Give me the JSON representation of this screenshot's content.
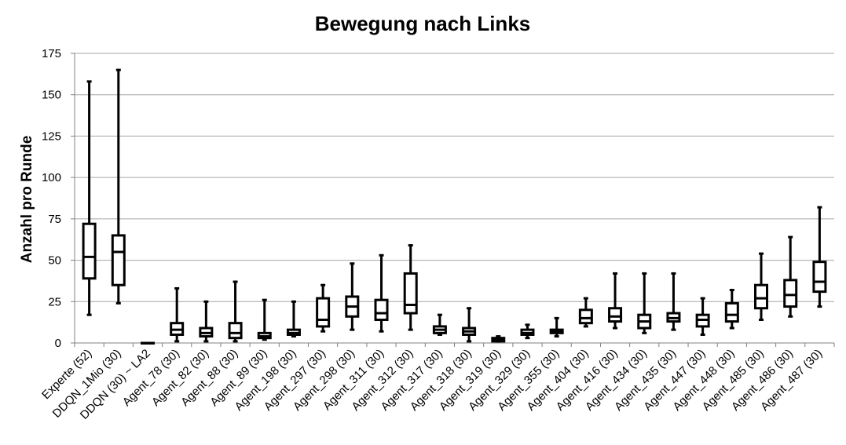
{
  "chart_data": {
    "type": "boxplot",
    "title": "Bewegung nach Links",
    "xlabel": "",
    "ylabel": "Anzahl pro Runde",
    "ylim": [
      0,
      175
    ],
    "yticks": [
      0,
      25,
      50,
      75,
      100,
      125,
      150,
      175
    ],
    "grid": true,
    "categories": [
      "Experte (52)",
      "DDQN_1Mio (30)",
      "DDQN (30) ~ LA2",
      "Agent_78 (30)",
      "Agent_82 (30)",
      "Agent_88 (30)",
      "Agent_89 (30)",
      "Agent_198 (30)",
      "Agent_297 (30)",
      "Agent_298 (30)",
      "Agent_311 (30)",
      "Agent_312 (30)",
      "Agent_317 (30)",
      "Agent_318 (30)",
      "Agent_319 (30)",
      "Agent_329 (30)",
      "Agent_355 (30)",
      "Agent_404 (30)",
      "Agent_416 (30)",
      "Agent_434 (30)",
      "Agent_435 (30)",
      "Agent_447 (30)",
      "Agent_448 (30)",
      "Agent_485 (30)",
      "Agent_486 (30)",
      "Agent_487 (30)"
    ],
    "boxes": [
      {
        "min": 17,
        "q1": 39,
        "median": 52,
        "q3": 72,
        "max": 158
      },
      {
        "min": 24,
        "q1": 35,
        "median": 55,
        "q3": 65,
        "max": 165
      },
      {
        "min": 0,
        "q1": 0,
        "median": 0,
        "q3": 0,
        "max": 0
      },
      {
        "min": 1,
        "q1": 5,
        "median": 8,
        "q3": 12,
        "max": 33
      },
      {
        "min": 1,
        "q1": 4,
        "median": 6,
        "q3": 9,
        "max": 25
      },
      {
        "min": 1,
        "q1": 3,
        "median": 6,
        "q3": 12,
        "max": 37
      },
      {
        "min": 2,
        "q1": 3,
        "median": 4,
        "q3": 6,
        "max": 26
      },
      {
        "min": 4,
        "q1": 5,
        "median": 6,
        "q3": 8,
        "max": 25
      },
      {
        "min": 7,
        "q1": 10,
        "median": 14,
        "q3": 27,
        "max": 35
      },
      {
        "min": 8,
        "q1": 16,
        "median": 22,
        "q3": 28,
        "max": 48
      },
      {
        "min": 7,
        "q1": 14,
        "median": 18,
        "q3": 26,
        "max": 53
      },
      {
        "min": 8,
        "q1": 18,
        "median": 23,
        "q3": 42,
        "max": 59
      },
      {
        "min": 5,
        "q1": 6,
        "median": 8,
        "q3": 10,
        "max": 17
      },
      {
        "min": 1,
        "q1": 5,
        "median": 7,
        "q3": 9,
        "max": 21
      },
      {
        "min": 1,
        "q1": 1,
        "median": 2,
        "q3": 3,
        "max": 4
      },
      {
        "min": 3,
        "q1": 5,
        "median": 6,
        "q3": 8,
        "max": 11
      },
      {
        "min": 4,
        "q1": 6,
        "median": 7,
        "q3": 8,
        "max": 15
      },
      {
        "min": 10,
        "q1": 12,
        "median": 15,
        "q3": 20,
        "max": 27
      },
      {
        "min": 9,
        "q1": 13,
        "median": 16,
        "q3": 21,
        "max": 42
      },
      {
        "min": 6,
        "q1": 9,
        "median": 13,
        "q3": 17,
        "max": 42
      },
      {
        "min": 8,
        "q1": 13,
        "median": 15,
        "q3": 18,
        "max": 42
      },
      {
        "min": 5,
        "q1": 10,
        "median": 14,
        "q3": 17,
        "max": 27
      },
      {
        "min": 9,
        "q1": 13,
        "median": 17,
        "q3": 24,
        "max": 32
      },
      {
        "min": 14,
        "q1": 21,
        "median": 27,
        "q3": 35,
        "max": 54
      },
      {
        "min": 16,
        "q1": 22,
        "median": 29,
        "q3": 38,
        "max": 64
      },
      {
        "min": 22,
        "q1": 31,
        "median": 37,
        "q3": 49,
        "max": 82
      }
    ]
  }
}
